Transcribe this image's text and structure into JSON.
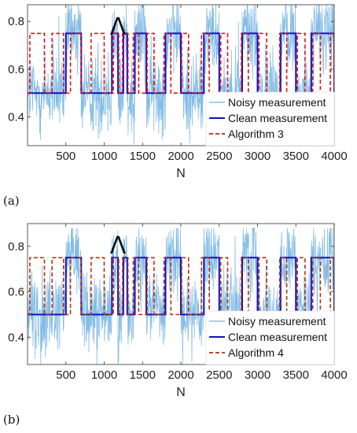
{
  "chart_data": [
    {
      "type": "line",
      "panel_label": "(a)",
      "xlabel": "N",
      "ylabel": "",
      "xlim": [
        0,
        4000
      ],
      "ylim": [
        0.28,
        0.87
      ],
      "x_ticks": [
        500,
        1000,
        1500,
        2000,
        2500,
        3000,
        3500,
        4000
      ],
      "y_ticks": [
        0.4,
        0.6,
        0.8
      ],
      "grid": false,
      "legend_position": "bottom-right",
      "annotation": "Λ",
      "annotation_x": 1200,
      "series": [
        {
          "name": "Noisy measurement",
          "color": "#6fb0e0",
          "style": "solid",
          "levels": [
            0.5,
            0.75
          ],
          "noise_amplitude": 0.1,
          "noise_range": [
            0.28,
            0.88
          ]
        },
        {
          "name": "Clean measurement",
          "color": "#1010c8",
          "style": "solid",
          "transitions": [
            0,
            500,
            700,
            1100,
            1180,
            1250,
            1300,
            1400,
            1550,
            1800,
            2000,
            2300,
            2500,
            2800,
            3000,
            3300,
            3500,
            3700,
            4000
          ],
          "levels": [
            0.5,
            0.75,
            0.5,
            0.75,
            0.5,
            0.75,
            0.5,
            0.75,
            0.5,
            0.75,
            0.5,
            0.75,
            0.5,
            0.75,
            0.5,
            0.75,
            0.5,
            0.75,
            0.5
          ]
        },
        {
          "name": "Algorithm 3",
          "color": "#e01010",
          "style": "dashed",
          "transitions": [
            0,
            30,
            220,
            320,
            470,
            560,
            700,
            830,
            1000,
            1120,
            1190,
            1240,
            1310,
            1380,
            1450,
            1560,
            1650,
            1780,
            1870,
            2010,
            2100,
            2270,
            2370,
            2520,
            2610,
            2790,
            2880,
            3020,
            3120,
            3290,
            3380,
            3520,
            3620,
            3720,
            3820,
            3950,
            4000
          ],
          "levels": [
            0.5,
            0.75,
            0.5,
            0.75,
            0.5,
            0.75,
            0.5,
            0.75,
            0.5,
            0.75,
            0.5,
            0.75,
            0.5,
            0.75,
            0.5,
            0.75,
            0.5,
            0.75,
            0.5,
            0.75,
            0.5,
            0.75,
            0.5,
            0.75,
            0.5,
            0.75,
            0.5,
            0.75,
            0.5,
            0.75,
            0.5,
            0.75,
            0.5,
            0.75,
            0.5,
            0.75,
            0.5
          ]
        }
      ]
    },
    {
      "type": "line",
      "panel_label": "(b)",
      "xlabel": "N",
      "ylabel": "",
      "xlim": [
        0,
        4000
      ],
      "ylim": [
        0.28,
        0.9
      ],
      "x_ticks": [
        500,
        1000,
        1500,
        2000,
        2500,
        3000,
        3500,
        4000
      ],
      "y_ticks": [
        0.4,
        0.6,
        0.8
      ],
      "grid": false,
      "legend_position": "bottom-right",
      "annotation": "Λ",
      "annotation_x": 1200,
      "series": [
        {
          "name": "Noisy measurement",
          "color": "#6fb0e0",
          "style": "solid",
          "levels": [
            0.5,
            0.75
          ],
          "noise_amplitude": 0.1,
          "noise_range": [
            0.28,
            0.88
          ]
        },
        {
          "name": "Clean measurement",
          "color": "#1010c8",
          "style": "solid",
          "transitions": [
            0,
            500,
            700,
            1100,
            1180,
            1250,
            1300,
            1400,
            1550,
            1800,
            2000,
            2300,
            2500,
            2800,
            3000,
            3300,
            3500,
            3700,
            4000
          ],
          "levels": [
            0.5,
            0.75,
            0.5,
            0.75,
            0.5,
            0.75,
            0.5,
            0.75,
            0.5,
            0.75,
            0.5,
            0.75,
            0.5,
            0.75,
            0.5,
            0.75,
            0.5,
            0.75,
            0.5
          ]
        },
        {
          "name": "Algorithm 4",
          "color": "#b03010",
          "style": "dashed",
          "transitions": [
            0,
            30,
            220,
            320,
            470,
            560,
            700,
            830,
            1000,
            1120,
            1190,
            1240,
            1310,
            1380,
            1450,
            1560,
            1650,
            1780,
            1870,
            2010,
            2100,
            2270,
            2370,
            2520,
            2610,
            2790,
            2880,
            3020,
            3120,
            3290,
            3380,
            3520,
            3620,
            3720,
            3820,
            3950,
            4000
          ],
          "levels": [
            0.5,
            0.75,
            0.5,
            0.75,
            0.5,
            0.75,
            0.5,
            0.75,
            0.5,
            0.75,
            0.5,
            0.75,
            0.5,
            0.75,
            0.5,
            0.75,
            0.5,
            0.75,
            0.5,
            0.75,
            0.5,
            0.75,
            0.5,
            0.75,
            0.5,
            0.75,
            0.5,
            0.75,
            0.5,
            0.75,
            0.5,
            0.75,
            0.5,
            0.75,
            0.5,
            0.75,
            0.5
          ]
        }
      ]
    }
  ]
}
